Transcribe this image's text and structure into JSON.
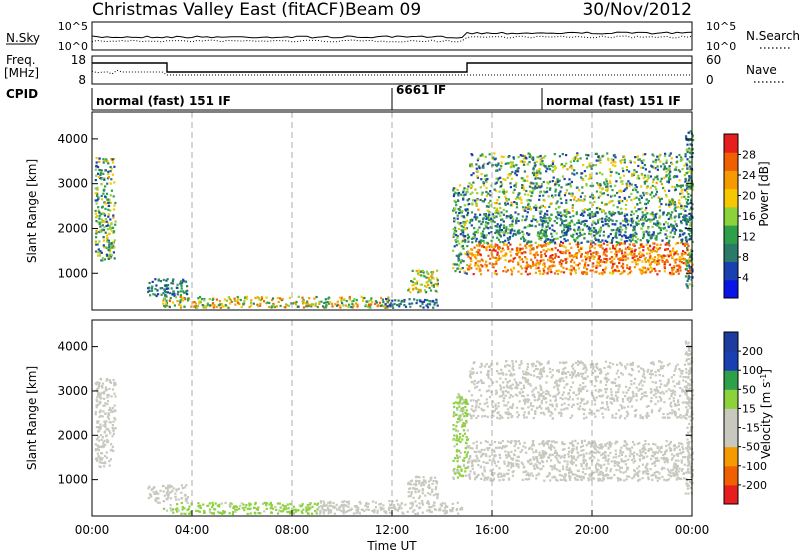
{
  "header": {
    "title": "Christmas Valley East (fitACF)",
    "beam": "Beam 09",
    "date": "30/Nov/2012"
  },
  "strips": {
    "nsky": {
      "label": "N.Sky",
      "ticks": [
        "10^5",
        "10^0"
      ],
      "right_ticks": [
        "10^5",
        "10^0"
      ],
      "right_label": "N.Search",
      "right_label_style": "dotted"
    },
    "freq": {
      "label_line1": "Freq.",
      "label_line2": "[MHz]",
      "ticks": [
        "18",
        "8"
      ],
      "right_ticks": [
        "60",
        "0"
      ],
      "right_label": "Nave",
      "right_label_style": "dotted"
    },
    "cpid": {
      "label": "CPID",
      "segments": [
        {
          "text": "normal (fast) 151 IF",
          "start_h": 0,
          "end_h": 12
        },
        {
          "text": "6661 IF",
          "start_h": 12,
          "end_h": 18
        },
        {
          "text": "normal (fast) 151 IF",
          "start_h": 18,
          "end_h": 24
        }
      ]
    }
  },
  "colors": {
    "power": [
      "#0a14e6",
      "#1a3fb0",
      "#2a7a6a",
      "#2ea04a",
      "#8cd23c",
      "#f5c800",
      "#f59a00",
      "#f06000",
      "#e61e1e"
    ],
    "velocity": [
      "#e61e1e",
      "#f06000",
      "#f59a00",
      "#c8c8be",
      "#c8c8be",
      "#8cd23c",
      "#2ea04a",
      "#1a3fb0",
      "#1e3ca0"
    ]
  },
  "chart_data": [
    {
      "type": "heatmap",
      "name": "power",
      "ylabel": "Slant Range [km]",
      "xlim_hours": [
        0,
        24
      ],
      "ylim_km": [
        180,
        4600
      ],
      "yticks": [
        1000,
        2000,
        3000,
        4000
      ],
      "colorbar": {
        "label": "Power [dB]",
        "range": [
          0,
          32
        ],
        "ticks": [
          4,
          8,
          12,
          16,
          20,
          24,
          28
        ]
      },
      "echo_regions": [
        {
          "t0": 0.1,
          "t1": 0.9,
          "r0": 1300,
          "r1": 3600,
          "v0": 4,
          "v1": 22
        },
        {
          "t0": 2.2,
          "t1": 3.8,
          "r0": 500,
          "r1": 900,
          "v0": 4,
          "v1": 14
        },
        {
          "t0": 2.8,
          "t1": 12,
          "r0": 250,
          "r1": 500,
          "v0": 8,
          "v1": 28
        },
        {
          "t0": 11.5,
          "t1": 13.8,
          "r0": 250,
          "r1": 450,
          "v0": 4,
          "v1": 12
        },
        {
          "t0": 12.6,
          "t1": 13.8,
          "r0": 600,
          "r1": 1100,
          "v0": 8,
          "v1": 24
        },
        {
          "t0": 14.4,
          "t1": 15.0,
          "r0": 1000,
          "r1": 3000,
          "v0": 4,
          "v1": 20
        },
        {
          "t0": 15.0,
          "t1": 24,
          "r0": 1000,
          "r1": 1700,
          "v0": 20,
          "v1": 30
        },
        {
          "t0": 15.0,
          "t1": 24,
          "r0": 1700,
          "r1": 2400,
          "v0": 4,
          "v1": 16
        },
        {
          "t0": 15.0,
          "t1": 24,
          "r0": 2400,
          "r1": 3700,
          "v0": 4,
          "v1": 22
        },
        {
          "t0": 23.7,
          "t1": 24,
          "r0": 700,
          "r1": 4200,
          "v0": 4,
          "v1": 18
        }
      ]
    },
    {
      "type": "heatmap",
      "name": "velocity",
      "xlabel": "Time UT",
      "ylabel": "Slant Range [km]",
      "xlim_hours": [
        0,
        24
      ],
      "xticks": [
        "00:00",
        "04:00",
        "08:00",
        "12:00",
        "16:00",
        "20:00",
        "00:00"
      ],
      "ylim_km": [
        180,
        4600
      ],
      "yticks": [
        1000,
        2000,
        3000,
        4000
      ],
      "colorbar": {
        "label": "Velocity [m s^-1]",
        "range": [
          -250,
          250
        ],
        "ticks": [
          -200,
          -100,
          -50,
          -15,
          15,
          50,
          100,
          200
        ]
      },
      "echo_regions": [
        {
          "t0": 0.1,
          "t1": 0.9,
          "r0": 1300,
          "r1": 3300,
          "v0": -30,
          "v1": 10
        },
        {
          "t0": 2.2,
          "t1": 3.8,
          "r0": 500,
          "r1": 900,
          "v0": -15,
          "v1": 15
        },
        {
          "t0": 2.8,
          "t1": 9,
          "r0": 250,
          "r1": 500,
          "v0": 20,
          "v1": 60
        },
        {
          "t0": 9,
          "t1": 14.8,
          "r0": 250,
          "r1": 550,
          "v0": -80,
          "v1": -20
        },
        {
          "t0": 12.6,
          "t1": 13.8,
          "r0": 600,
          "r1": 1100,
          "v0": -15,
          "v1": 10
        },
        {
          "t0": 14.4,
          "t1": 15.0,
          "r0": 1000,
          "r1": 3000,
          "v0": 15,
          "v1": 60
        },
        {
          "t0": 15.0,
          "t1": 24,
          "r0": 1000,
          "r1": 1900,
          "v0": -15,
          "v1": 15
        },
        {
          "t0": 15.0,
          "t1": 24,
          "r0": 2400,
          "r1": 3700,
          "v0": -20,
          "v1": 20
        },
        {
          "t0": 23.7,
          "t1": 24,
          "r0": 700,
          "r1": 4200,
          "v0": -15,
          "v1": 15
        }
      ]
    }
  ]
}
